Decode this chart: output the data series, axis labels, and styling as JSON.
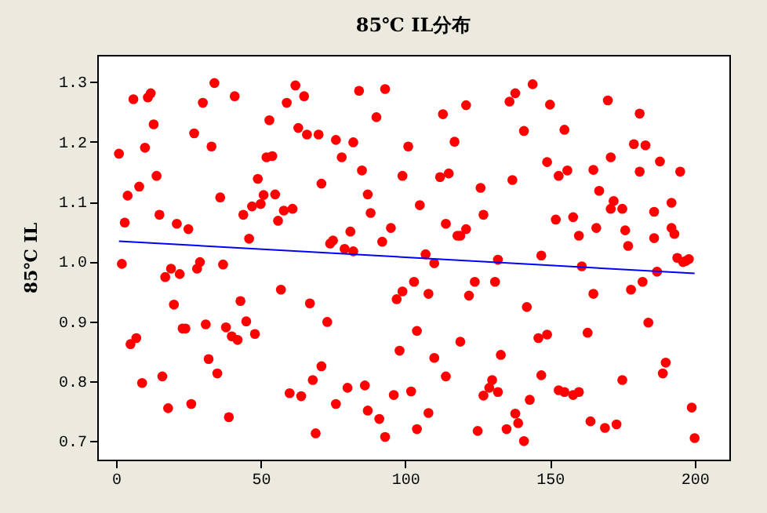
{
  "chart_data": {
    "type": "scatter",
    "title": "85℃ IL分布",
    "ylabel": "85℃ IL",
    "xlim": [
      -6.5,
      212
    ],
    "ylim": [
      0.669,
      1.345
    ],
    "xticks": [
      0,
      50,
      100,
      150,
      200
    ],
    "yticks": [
      {
        "value": 0.7,
        "label": "0.7"
      },
      {
        "value": 0.8,
        "label": "0.8"
      },
      {
        "value": 0.9,
        "label": "0.9"
      },
      {
        "value": 1,
        "label": "1.0"
      },
      {
        "value": 1.1,
        "label": "1.1"
      },
      {
        "value": 1.2,
        "label": "1.2"
      },
      {
        "value": 1.3,
        "label": "1.3"
      }
    ],
    "series": [
      {
        "color": "#ff0000",
        "marker": "circle",
        "x": [
          1,
          2,
          3,
          4,
          5,
          7,
          6,
          8,
          9,
          10,
          11,
          12,
          13,
          14,
          15,
          16,
          17,
          18,
          19,
          20,
          21,
          22,
          23,
          24,
          25,
          26,
          27,
          28,
          29,
          30,
          31,
          32,
          33,
          34,
          35,
          36,
          37,
          38,
          39,
          40,
          41,
          42,
          43,
          44,
          45,
          46,
          47,
          48,
          49,
          50,
          51,
          52,
          53,
          54,
          55,
          56,
          57,
          58,
          59,
          60,
          61,
          62,
          63,
          64,
          65,
          66,
          67,
          68,
          69,
          70,
          71,
          71,
          73,
          74,
          75,
          76,
          76,
          78,
          79,
          80,
          81,
          82,
          82,
          84,
          85,
          86,
          87,
          87,
          88,
          90,
          91,
          92,
          93,
          93,
          95,
          96,
          97,
          98,
          99,
          99,
          101,
          102,
          103,
          104,
          104,
          105,
          107,
          108,
          108,
          110,
          110,
          112,
          113,
          114,
          114,
          115,
          117,
          118,
          119,
          119,
          121,
          121,
          122,
          124,
          125,
          126,
          127,
          127,
          129,
          130,
          131,
          132,
          132,
          133,
          135,
          136,
          137,
          138,
          138,
          139,
          141,
          141,
          142,
          143,
          144,
          146,
          147,
          147,
          149,
          149,
          150,
          152,
          153,
          153,
          155,
          155,
          156,
          158,
          158,
          160,
          160,
          161,
          163,
          164,
          165,
          165,
          166,
          167,
          169,
          170,
          171,
          171,
          172,
          173,
          175,
          175,
          176,
          177,
          178,
          179,
          181,
          181,
          182,
          183,
          184,
          186,
          186,
          187,
          188,
          189,
          190,
          192,
          192,
          193,
          194,
          195,
          196,
          197,
          198,
          199,
          200
        ],
        "values": [
          1.18,
          0.996,
          1.065,
          1.11,
          0.862,
          0.872,
          1.271,
          1.125,
          0.797,
          1.19,
          1.274,
          1.281,
          1.229,
          1.143,
          1.078,
          0.808,
          0.974,
          0.755,
          0.988,
          0.928,
          1.063,
          0.979,
          0.888,
          0.888,
          1.054,
          0.762,
          1.214,
          0.988,
          0.999,
          1.265,
          0.895,
          0.837,
          1.192,
          1.298,
          0.813,
          1.107,
          0.995,
          0.89,
          0.74,
          0.875,
          1.276,
          0.869,
          0.934,
          1.078,
          0.9,
          1.038,
          1.092,
          0.879,
          1.138,
          1.096,
          1.111,
          1.174,
          1.236,
          1.176,
          1.112,
          1.068,
          0.953,
          1.085,
          1.265,
          0.78,
          1.088,
          1.294,
          1.223,
          0.775,
          1.276,
          1.212,
          0.93,
          0.802,
          0.713,
          1.212,
          1.13,
          0.825,
          0.899,
          1.03,
          1.035,
          0.762,
          1.203,
          1.174,
          1.021,
          0.789,
          1.05,
          1.017,
          1.199,
          1.285,
          1.152,
          0.793,
          1.112,
          0.751,
          1.081,
          1.241,
          0.737,
          1.033,
          1.288,
          0.707,
          1.056,
          0.777,
          0.937,
          0.851,
          1.143,
          0.95,
          1.192,
          0.783,
          0.966,
          0.72,
          0.884,
          1.094,
          1.012,
          0.747,
          0.946,
          0.839,
          0.997,
          1.141,
          1.246,
          0.808,
          1.063,
          1.147,
          1.2,
          1.043,
          0.866,
          1.043,
          1.261,
          1.054,
          0.943,
          0.966,
          0.717,
          1.123,
          0.776,
          1.078,
          0.789,
          0.802,
          0.966,
          0.782,
          1.003,
          0.844,
          0.72,
          1.267,
          1.136,
          1.281,
          0.746,
          0.73,
          0.7,
          1.218,
          0.924,
          0.769,
          1.296,
          0.872,
          0.81,
          1.01,
          1.166,
          0.878,
          1.262,
          1.07,
          1.143,
          0.785,
          0.782,
          1.22,
          1.152,
          1.074,
          0.777,
          1.043,
          0.782,
          0.992,
          0.881,
          0.733,
          0.946,
          1.153,
          1.056,
          1.118,
          0.722,
          1.269,
          1.088,
          1.174,
          1.101,
          0.728,
          0.802,
          1.088,
          1.052,
          1.026,
          0.953,
          1.196,
          1.247,
          1.15,
          0.966,
          1.194,
          0.898,
          1.083,
          1.039,
          0.983,
          1.167,
          0.813,
          0.831,
          1.098,
          1.056,
          1.046,
          1.006,
          1.15,
          0.999,
          1.001,
          1.004,
          0.756,
          0.705
        ]
      },
      {
        "type": "line",
        "marker": "none",
        "color": "#0000ff",
        "x": [
          1,
          200
        ],
        "values": [
          1.034,
          0.98
        ]
      }
    ]
  }
}
